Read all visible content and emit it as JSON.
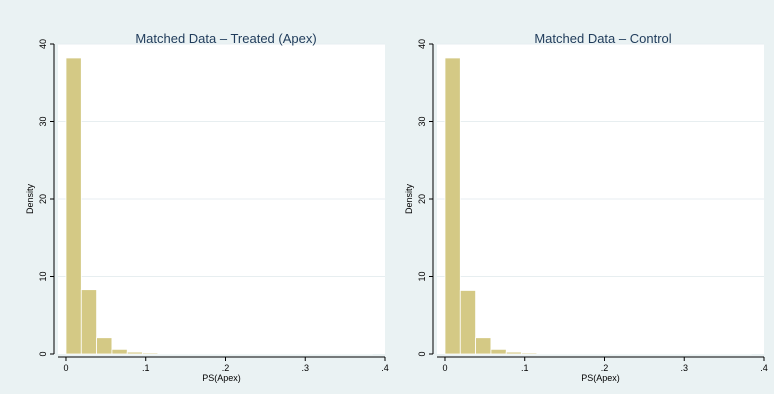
{
  "chart_data": [
    {
      "type": "bar",
      "title": "Matched Data – Treated (Apex)",
      "xlabel": "PS(Apex)",
      "ylabel": "Density",
      "xlim": [
        -0.01,
        0.4
      ],
      "ylim": [
        0,
        40
      ],
      "xticks": [
        0,
        0.1,
        0.2,
        0.3,
        0.4
      ],
      "xtick_labels": [
        "0",
        ".1",
        ".2",
        ".3",
        ".4"
      ],
      "yticks": [
        0,
        10,
        20,
        30,
        40
      ],
      "ytick_labels": [
        "0",
        "10",
        "20",
        "30",
        "40"
      ],
      "grid": true,
      "bin_width": 0.0192,
      "bin_start": 0,
      "values": [
        38.2,
        8.3,
        2.1,
        0.6,
        0.25,
        0.15,
        0.1,
        0.05,
        0.03,
        0.03,
        0.03,
        0.02,
        0.01,
        0.01,
        0.01,
        0.01,
        0.01,
        0.02,
        0.01,
        0.01
      ]
    },
    {
      "type": "bar",
      "title": "Matched Data –  Control",
      "xlabel": "PS(Apex)",
      "ylabel": "Density",
      "xlim": [
        -0.01,
        0.4
      ],
      "ylim": [
        0,
        40
      ],
      "xticks": [
        0,
        0.1,
        0.2,
        0.3,
        0.4
      ],
      "xtick_labels": [
        "0",
        ".1",
        ".2",
        ".3",
        ".4"
      ],
      "yticks": [
        0,
        10,
        20,
        30,
        40
      ],
      "ytick_labels": [
        "0",
        "10",
        "20",
        "30",
        "40"
      ],
      "grid": true,
      "bin_width": 0.0192,
      "bin_start": 0,
      "values": [
        38.2,
        8.2,
        2.1,
        0.6,
        0.25,
        0.15,
        0.1,
        0.05,
        0.03,
        0.03,
        0.03,
        0.02,
        0.01,
        0.01,
        0.01,
        0.01,
        0.01,
        0.01,
        0.01,
        0.01
      ]
    }
  ],
  "colors": {
    "panel_background": "#eaf2f3",
    "bar_fill": "#d4c985",
    "title": "#1f3b5a"
  }
}
